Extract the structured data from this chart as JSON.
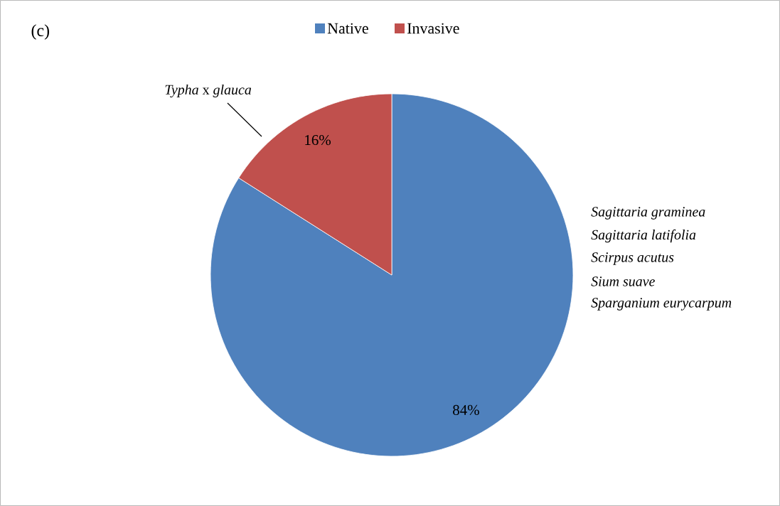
{
  "chart_data": {
    "type": "pie",
    "title": "(c)",
    "categories": [
      "Native",
      "Invasive"
    ],
    "values": [
      84,
      16
    ],
    "colors": [
      "#4f81bd",
      "#c0504d"
    ],
    "value_labels": [
      "84%",
      "16%"
    ],
    "legend": "top",
    "annotations": [
      "*Typha* x *glauca*",
      "Sagittaria graminea",
      "Sagittaria latifolia",
      "Scirpus acutus",
      "Sium suave",
      "Sparganium eurycarpum"
    ]
  }
}
